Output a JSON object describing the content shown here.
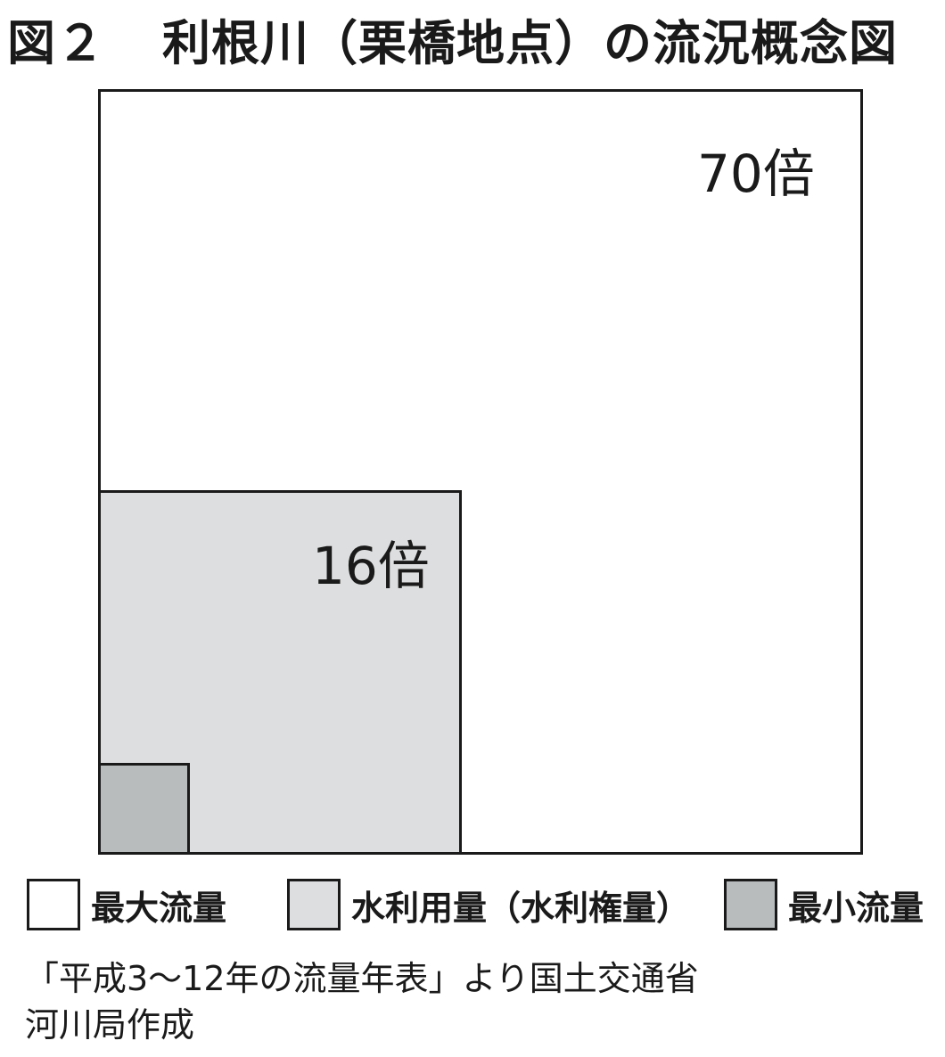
{
  "title": {
    "figure_number": "図２",
    "text": "利根川（栗橋地点）の流況概念図"
  },
  "diagram": {
    "boxes": [
      {
        "name": "最大流量",
        "ratio_label": "70倍",
        "fill": "#ffffff"
      },
      {
        "name": "水利用量（水利権量）",
        "ratio_label": "16倍",
        "fill": "#dddedf"
      },
      {
        "name": "最小流量",
        "ratio_label": "",
        "fill": "#b8bcbd"
      }
    ]
  },
  "legend": {
    "items": [
      {
        "label": "最大流量",
        "color": "#ffffff"
      },
      {
        "label": "水利用量（水利権量）",
        "color": "#dddedf"
      },
      {
        "label": "最小流量",
        "color": "#b8bcbd"
      }
    ]
  },
  "source": {
    "line1": "「平成3〜12年の流量年表」より国土交通省",
    "line2": "河川局作成"
  }
}
